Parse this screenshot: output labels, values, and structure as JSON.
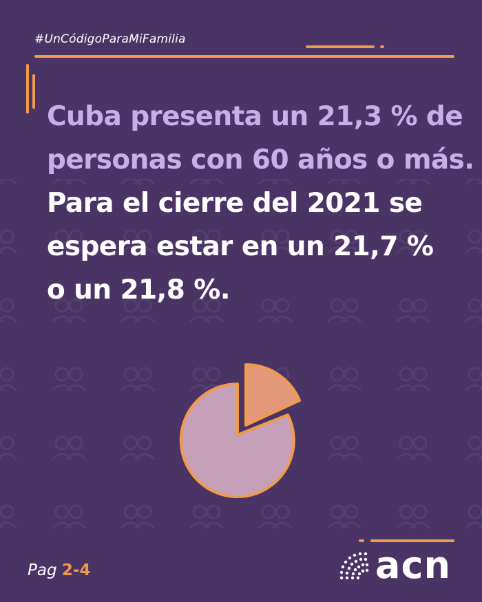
{
  "hashtag": "#UnCódigoParaMiFamilia",
  "headline": {
    "highlight_lines": [
      "Cuba presenta un 21,3 % de",
      "personas con 60 años o más."
    ],
    "body_lines": [
      "Para el cierre del 2021 se",
      "espera estar en un 21,7 %",
      "o un 21,8 %."
    ]
  },
  "footer": {
    "page_prefix": "Pag",
    "page_number": "2-4",
    "brand": "acn"
  },
  "colors": {
    "background": "#4a3466",
    "accent": "#f09a4b",
    "highlight_text": "#c6b0e6",
    "pie_main": "#c5a0b8",
    "pie_slice": "#e4997a"
  },
  "icons": [
    "people-pattern-icon",
    "pie-chart-icon",
    "acn-logo-icon"
  ]
}
